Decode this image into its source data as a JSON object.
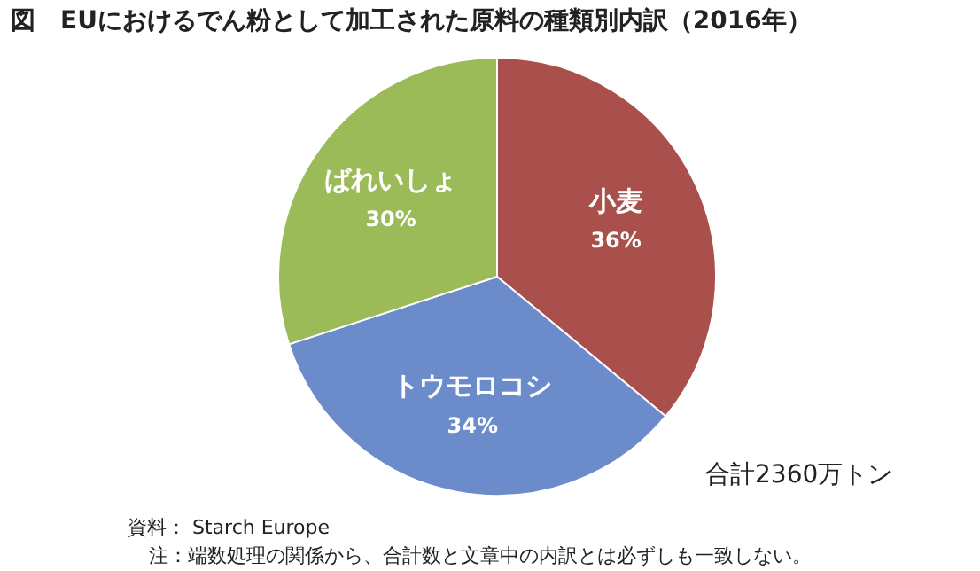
{
  "chart_data": {
    "type": "pie",
    "title": "図　EUにおけるでん粉として加工された原料の種類別内訳（2016年）",
    "categories": [
      "小麦",
      "トウモロコシ",
      "ばれいしょ"
    ],
    "values": [
      36,
      34,
      30
    ],
    "value_labels": [
      "36%",
      "34%",
      "30%"
    ],
    "colors": [
      "#a9504c",
      "#6b8bcb",
      "#9bbb59"
    ],
    "legend": false,
    "annotations": [
      "合計2360万トン",
      "資料： Starch Europe",
      "注：端数処理の関係から、合計数と文章中の内訳とは必ずしも一致しない。"
    ]
  }
}
